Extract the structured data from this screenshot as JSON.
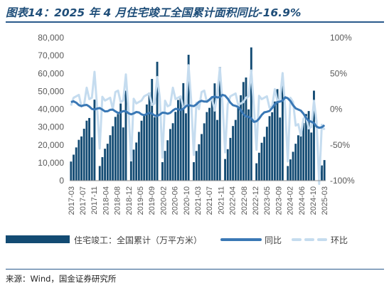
{
  "title": "图表14：2025 年 4 月住宅竣工全国累计面积同比-16.9%",
  "source": "来源：Wind，国金证券研究所",
  "chart_data": {
    "type": "bar",
    "title": "图表14：2025 年 4 月住宅竣工全国累计面积同比-16.9%",
    "left_axis": {
      "ylim": [
        0,
        80000
      ],
      "ticks": [
        "0",
        "10,000",
        "20,000",
        "30,000",
        "40,000",
        "50,000",
        "60,000",
        "70,000",
        "80,000"
      ]
    },
    "right_axis": {
      "ylim": [
        -100,
        100
      ],
      "ticks": [
        "-100%",
        "-50%",
        "0%",
        "50%",
        "100%"
      ]
    },
    "x_tick_labels": [
      "2017-03",
      "2017-07",
      "2017-11",
      "2018-04",
      "2018-08",
      "2018-12",
      "2019-05",
      "2019-09",
      "2020-02",
      "2020-06",
      "2020-10",
      "2021-03",
      "2021-07",
      "2021-11",
      "2022-04",
      "2022-08",
      "2022-12",
      "2023-05",
      "2023-09",
      "2024-02",
      "2024-06",
      "2024-10",
      "2025-03"
    ],
    "series": [
      {
        "name": "住宅竣工：全国累计（万平方米）",
        "kind": "bar",
        "axis": "left",
        "color": "#134b73",
        "annual_totals": [
          45000,
          53000,
          67000,
          68000,
          65000,
          73000,
          62000,
          50000,
          52000
        ],
        "partial_2025": [
          5200,
          8500,
          11500
        ]
      },
      {
        "name": "同比",
        "kind": "line",
        "axis": "right",
        "color": "#3a78b5",
        "values_by_year": [
          12,
          0,
          -5,
          -8,
          5,
          20,
          -18,
          17,
          -25,
          -18
        ]
      },
      {
        "name": "环比",
        "kind": "line",
        "axis": "right",
        "color": "#c5dcef"
      }
    ],
    "legend_position": "bottom",
    "grid": false
  }
}
